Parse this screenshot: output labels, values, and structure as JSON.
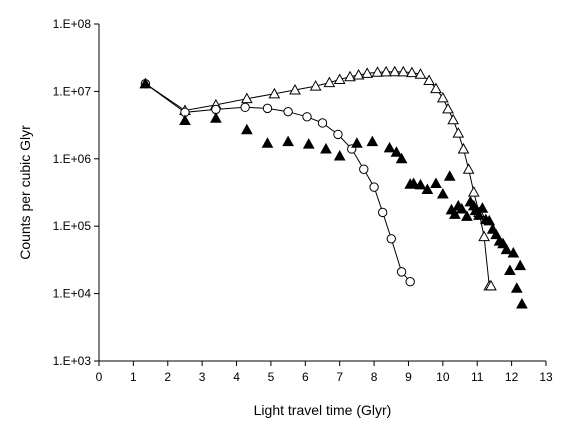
{
  "chart_data": {
    "type": "scatter",
    "xlabel": "Light travel time (Glyr)",
    "ylabel": "Counts per cubic Glyr",
    "xlim": [
      0,
      13
    ],
    "ylim": [
      1000,
      100000000
    ],
    "y_scale": "log",
    "x_ticks": [
      "0",
      "1",
      "2",
      "3",
      "4",
      "5",
      "6",
      "7",
      "8",
      "9",
      "10",
      "11",
      "12",
      "13"
    ],
    "y_ticks": [
      "1.E+03",
      "1.E+04",
      "1.E+05",
      "1.E+06",
      "1.E+07",
      "1.E+08"
    ],
    "y_tick_values": [
      1000,
      10000,
      100000,
      1000000,
      10000000,
      100000000
    ],
    "grid": false,
    "series": [
      {
        "marker": "open-triangle",
        "connected": true,
        "x": [
          1.35,
          2.5,
          3.4,
          4.3,
          5.1,
          5.7,
          6.3,
          6.7,
          7.0,
          7.3,
          7.55,
          7.8,
          8.1,
          8.35,
          8.6,
          8.85,
          9.1,
          9.35,
          9.6,
          9.8,
          10.0,
          10.15,
          10.3,
          10.45,
          10.6,
          10.75,
          10.9,
          11.05,
          11.2,
          11.35,
          11.4
        ],
        "y": [
          13000000,
          5200000,
          6300000,
          7800000,
          9200000,
          10500000,
          12000000,
          13500000,
          15000000,
          16500000,
          17500000,
          18500000,
          19200000,
          19500000,
          19600000,
          19500000,
          19000000,
          18000000,
          14500000,
          11000000,
          8000000,
          5500000,
          3800000,
          2400000,
          1400000,
          700000,
          320000,
          160000,
          70000,
          13000,
          13000
        ]
      },
      {
        "marker": "open-circle",
        "connected": true,
        "x": [
          1.35,
          2.5,
          3.4,
          4.25,
          4.9,
          5.5,
          6.05,
          6.5,
          6.95,
          7.35,
          7.7,
          8.0,
          8.25,
          8.5,
          8.8,
          9.05
        ],
        "y": [
          13000000,
          4900000,
          5400000,
          5800000,
          5600000,
          5000000,
          4200000,
          3400000,
          2300000,
          1400000,
          700000,
          380000,
          160000,
          65000,
          21000,
          15000
        ]
      },
      {
        "marker": "filled-triangle",
        "connected": false,
        "x": [
          1.35,
          2.5,
          3.4,
          4.3,
          4.9,
          5.5,
          6.1,
          6.6,
          7.0,
          7.5,
          7.95,
          8.45,
          8.65,
          8.8,
          9.05,
          9.15,
          9.35,
          9.55,
          9.8,
          10.0,
          10.2,
          10.25,
          10.35,
          10.45,
          10.55,
          10.7,
          10.8,
          10.9,
          10.95,
          11.05,
          11.15,
          11.25,
          11.35,
          11.45,
          11.55,
          11.65,
          11.75,
          11.85,
          11.95,
          12.05,
          12.15,
          12.25,
          12.3
        ],
        "y": [
          13000000,
          3700000,
          4000000,
          2700000,
          1700000,
          1800000,
          1650000,
          1400000,
          1100000,
          1700000,
          1800000,
          1450000,
          1250000,
          1000000,
          420000,
          430000,
          410000,
          350000,
          430000,
          300000,
          550000,
          175000,
          150000,
          200000,
          180000,
          140000,
          230000,
          200000,
          170000,
          145000,
          185000,
          125000,
          120000,
          90000,
          75000,
          60000,
          55000,
          45000,
          22000,
          40000,
          12000,
          26000,
          7000
        ]
      }
    ]
  }
}
